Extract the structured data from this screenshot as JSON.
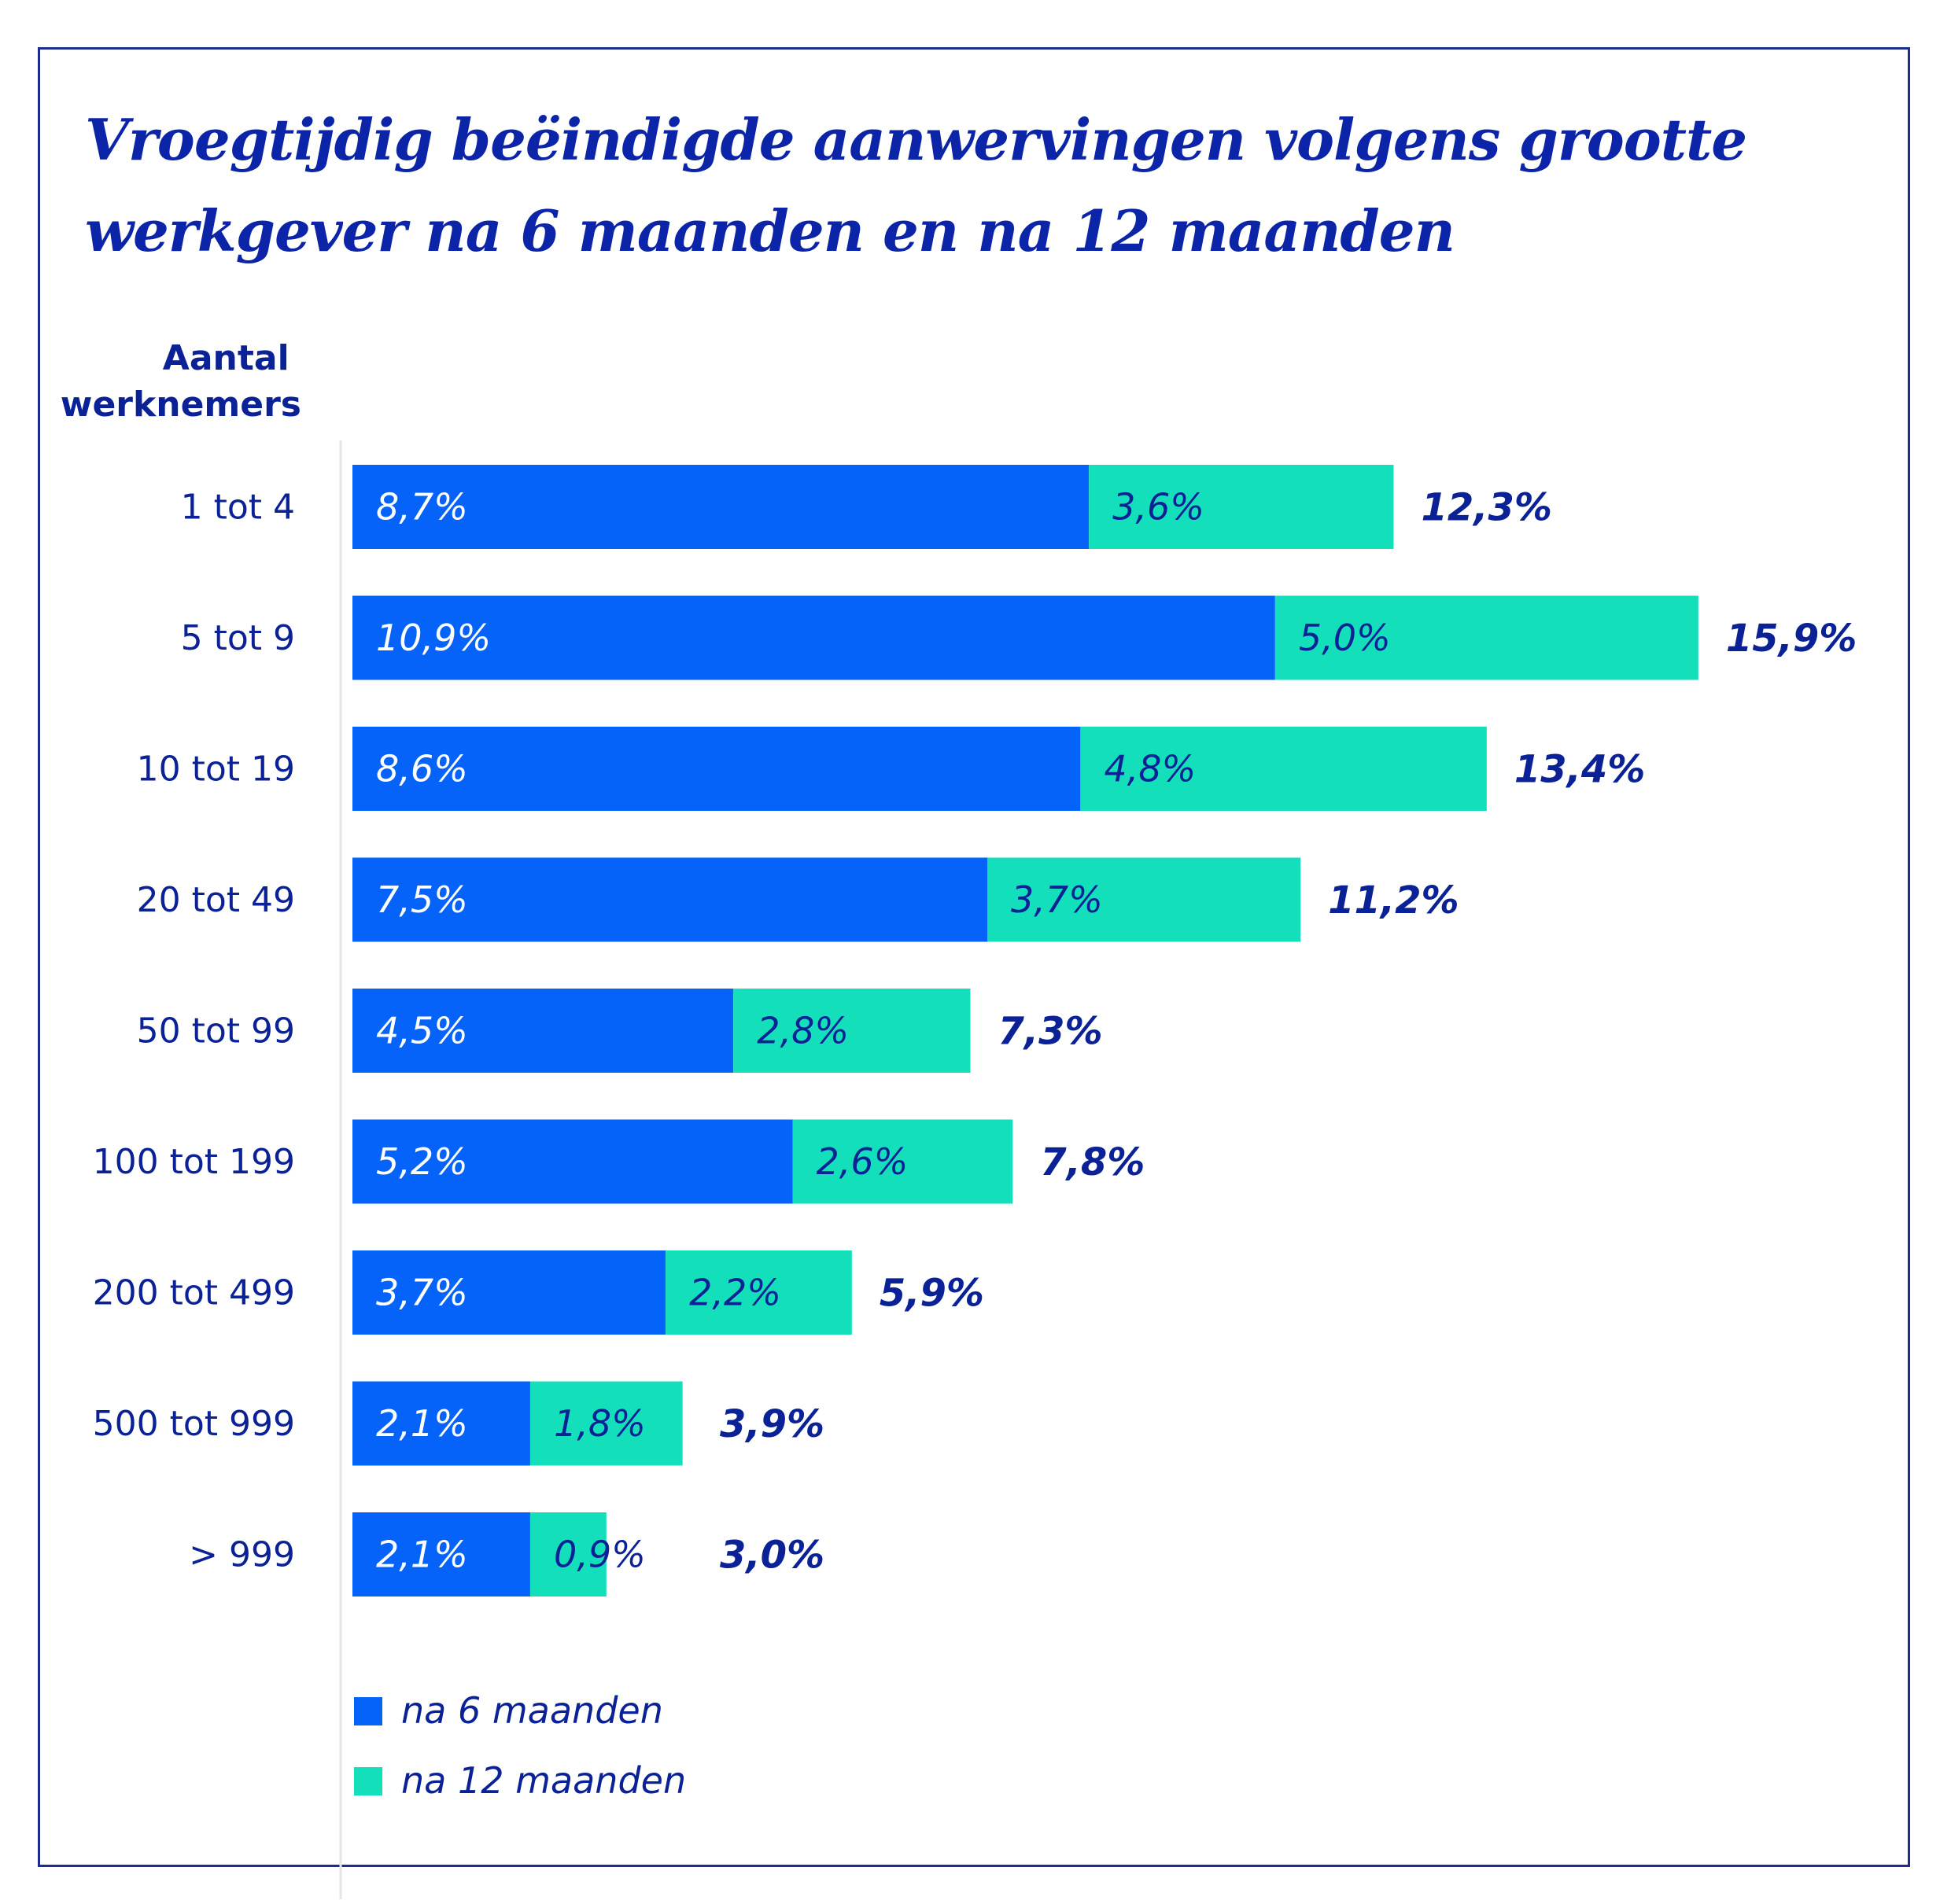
{
  "chart_data": {
    "type": "bar",
    "orientation": "horizontal",
    "stacked": true,
    "title": "Vroegtijdig beëindigde aanwervingen volgens grootte werkgever na 6 maanden en na 12 maanden",
    "ylabel": "Aantal werknemers",
    "xlabel": "",
    "categories": [
      "1 tot 4",
      "5 tot 9",
      "10 tot 19",
      "20 tot 49",
      "50 tot 99",
      "100 tot 199",
      "200 tot 499",
      "500 tot 999",
      "> 999"
    ],
    "series": [
      {
        "name": "na 6 maanden",
        "color": "#0563fa",
        "values": [
          8.7,
          10.9,
          8.6,
          7.5,
          4.5,
          5.2,
          3.7,
          2.1,
          2.1
        ],
        "labels": [
          "8,7%",
          "10,9%",
          "8,6%",
          "7,5%",
          "4,5%",
          "5,2%",
          "3,7%",
          "2,1%",
          "2,1%"
        ]
      },
      {
        "name": "na 12 maanden",
        "color": "#14dfbb",
        "values": [
          3.6,
          5.0,
          4.8,
          3.7,
          2.8,
          2.6,
          2.2,
          1.8,
          0.9
        ],
        "labels": [
          "3,6%",
          "5,0%",
          "4,8%",
          "3,7%",
          "2,8%",
          "2,6%",
          "2,2%",
          "1,8%",
          "0,9%"
        ]
      }
    ],
    "totals": [
      12.3,
      15.9,
      13.4,
      11.2,
      7.3,
      7.8,
      5.9,
      3.9,
      3.0
    ],
    "total_labels": [
      "12,3%",
      "15,9%",
      "13,4%",
      "11,2%",
      "7,3%",
      "7,8%",
      "5,9%",
      "3,9%",
      "3,0%"
    ],
    "xlim": [
      0,
      15.9
    ],
    "grid": false,
    "legend": "bottom-left"
  },
  "colors": {
    "title": "#0b24a8",
    "text": "#0b2196",
    "frame": "#1e2b8f",
    "axis_line": "#e6e6ea"
  }
}
